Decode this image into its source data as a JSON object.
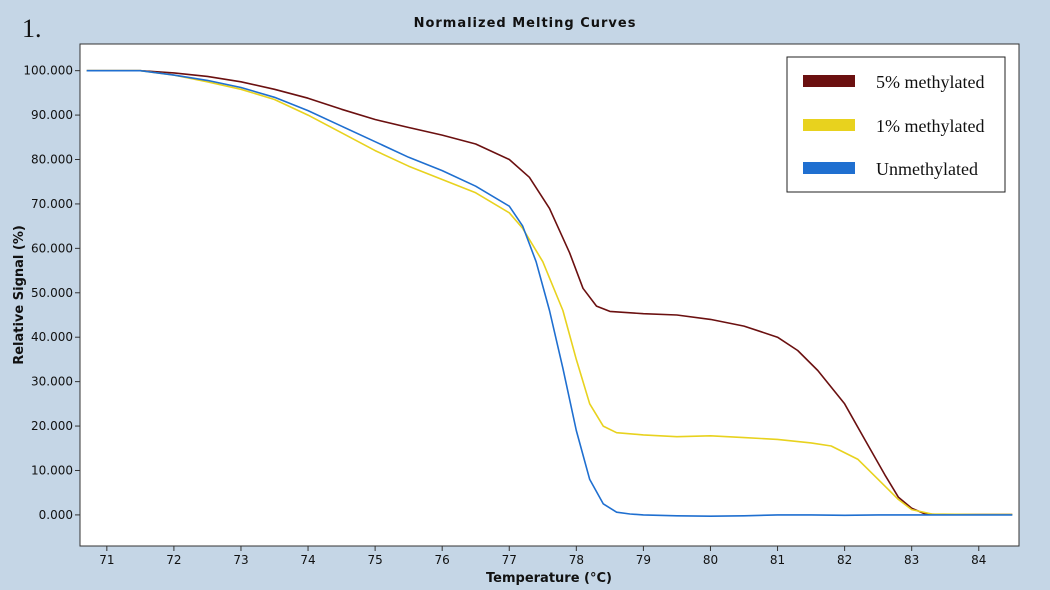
{
  "panel_label": "1.",
  "chart_data": {
    "type": "line",
    "title": "Normalized Melting Curves",
    "xlabel": "Temperature (°C)",
    "ylabel": "Relative Signal (%)",
    "xlim": [
      70.6,
      84.6
    ],
    "ylim": [
      -7,
      106
    ],
    "x_ticks": [
      71,
      72,
      73,
      74,
      75,
      76,
      77,
      78,
      79,
      80,
      81,
      82,
      83,
      84
    ],
    "y_ticks": [
      0,
      10,
      20,
      30,
      40,
      50,
      60,
      70,
      80,
      90,
      100
    ],
    "y_tick_labels": [
      "0.000",
      "10.000",
      "20.000",
      "30.000",
      "40.000",
      "50.000",
      "60.000",
      "70.000",
      "80.000",
      "90.000",
      "100.000"
    ],
    "grid": false,
    "legend_position": "top-right",
    "series": [
      {
        "name": "5% methylated",
        "color": "#6b1010",
        "x": [
          70.7,
          71.5,
          72.0,
          72.5,
          73.0,
          73.5,
          74.0,
          74.5,
          75.0,
          75.5,
          76.0,
          76.5,
          77.0,
          77.3,
          77.6,
          77.9,
          78.1,
          78.3,
          78.5,
          79.0,
          79.5,
          80.0,
          80.5,
          81.0,
          81.3,
          81.6,
          82.0,
          82.3,
          82.6,
          82.8,
          83.0,
          83.2,
          83.5,
          84.0,
          84.5
        ],
        "y": [
          100,
          100,
          99.5,
          98.7,
          97.5,
          95.8,
          93.8,
          91.3,
          89.0,
          87.2,
          85.5,
          83.5,
          80.0,
          76.0,
          69.0,
          59.0,
          51.0,
          47.0,
          45.8,
          45.3,
          45.0,
          44.0,
          42.5,
          40.0,
          37.0,
          32.5,
          25.0,
          17.0,
          9.0,
          4.0,
          1.5,
          0.2,
          0.1,
          0.1,
          0.1
        ]
      },
      {
        "name": "1% methylated",
        "color": "#e8d21e",
        "x": [
          70.7,
          71.5,
          72.0,
          72.5,
          73.0,
          73.5,
          74.0,
          74.5,
          75.0,
          75.5,
          76.0,
          76.5,
          77.0,
          77.2,
          77.5,
          77.8,
          78.0,
          78.2,
          78.4,
          78.6,
          79.0,
          79.5,
          80.0,
          80.5,
          81.0,
          81.5,
          81.8,
          82.2,
          82.5,
          82.8,
          83.0,
          83.3,
          84.0,
          84.5
        ],
        "y": [
          100,
          100,
          99.0,
          97.5,
          95.8,
          93.5,
          90.0,
          86.0,
          82.0,
          78.5,
          75.5,
          72.5,
          68.0,
          64.5,
          57.0,
          46.0,
          35.0,
          25.0,
          20.0,
          18.5,
          18.0,
          17.6,
          17.8,
          17.4,
          17.0,
          16.2,
          15.5,
          12.5,
          8.0,
          3.5,
          1.2,
          0.2,
          0.1,
          0.1
        ]
      },
      {
        "name": "Unmethylated",
        "color": "#1f6fd0",
        "x": [
          70.7,
          71.5,
          72.0,
          72.5,
          73.0,
          73.5,
          74.0,
          74.5,
          75.0,
          75.5,
          76.0,
          76.5,
          77.0,
          77.2,
          77.4,
          77.6,
          77.8,
          78.0,
          78.2,
          78.4,
          78.6,
          78.8,
          79.0,
          79.5,
          80.0,
          80.5,
          81.0,
          81.5,
          82.0,
          82.5,
          83.0,
          84.0,
          84.5
        ],
        "y": [
          100,
          100,
          99.0,
          97.8,
          96.2,
          94.0,
          91.0,
          87.5,
          84.0,
          80.5,
          77.5,
          74.0,
          69.5,
          65.0,
          57.0,
          46.0,
          33.0,
          19.0,
          8.0,
          2.5,
          0.6,
          0.2,
          0.0,
          -0.2,
          -0.3,
          -0.2,
          0.0,
          0.0,
          -0.1,
          0.0,
          0.0,
          0.0,
          0.0
        ]
      }
    ]
  }
}
